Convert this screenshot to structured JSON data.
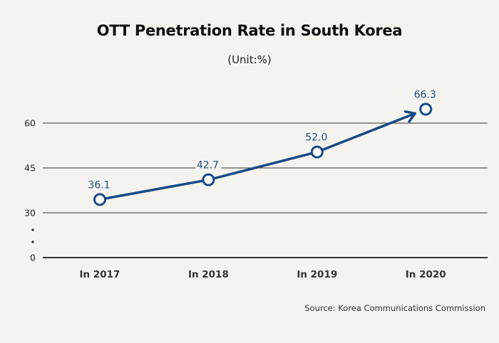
{
  "chart_data": {
    "type": "line",
    "title": "OTT Penetration Rate in South Korea",
    "subtitle": "(Unit:%)",
    "categories": [
      "In 2017",
      "In 2018",
      "In 2019",
      "In 2020"
    ],
    "series": [
      {
        "name": "OTT Penetration Rate",
        "values": [
          36.1,
          42.7,
          52.0,
          66.3
        ],
        "labels": [
          "36.1",
          "42.7",
          "52.0",
          "66.3"
        ]
      }
    ],
    "yticks": [
      0,
      30,
      45,
      60
    ],
    "ytick_labels": [
      "0",
      "30",
      "45",
      "60"
    ],
    "ylim": [
      0,
      70
    ],
    "axis_break": [
      0,
      30
    ],
    "grid": true,
    "xlabel": "",
    "ylabel": "",
    "line_color": "#1a4a86",
    "source": "Source: Korea Communications Commission"
  }
}
